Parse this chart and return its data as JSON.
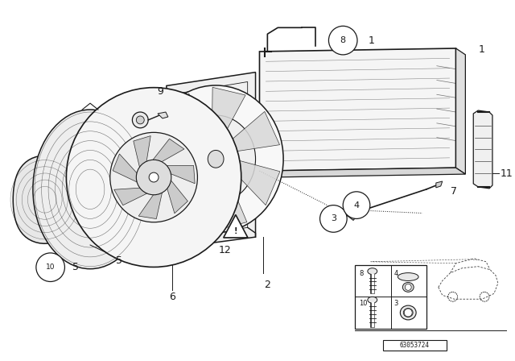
{
  "bg_color": "#ffffff",
  "line_color": "#1a1a1a",
  "fig_width": 6.4,
  "fig_height": 4.48,
  "dpi": 100,
  "part_number": "63053724"
}
